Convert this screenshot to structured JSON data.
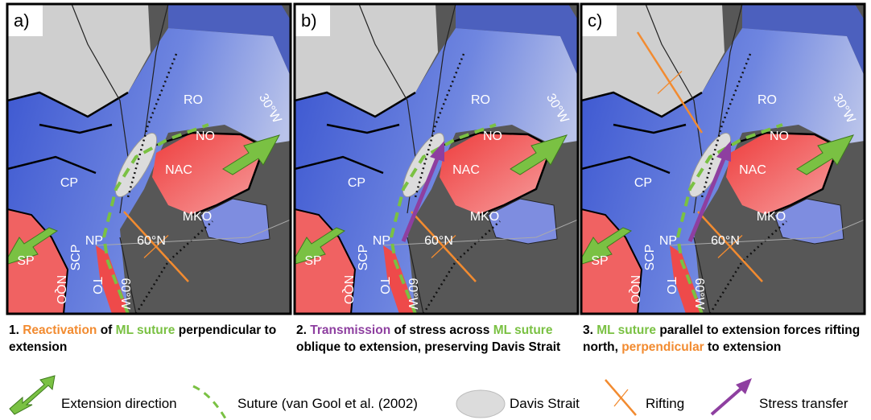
{
  "panels": [
    {
      "label": "a)",
      "regions": [
        "RO",
        "NO",
        "NAC",
        "CP",
        "MKO",
        "SCP",
        "NP",
        "60°N",
        "SP",
        "NQO",
        "TO",
        "60°W",
        "30°W"
      ],
      "caption": [
        {
          "text": "1. ",
          "color": "#000000"
        },
        {
          "text": "Reactivation",
          "color": "#f28b30"
        },
        {
          "text": " of ",
          "color": "#000000"
        },
        {
          "text": "ML suture",
          "color": "#7ac143"
        },
        {
          "text": " perpendicular to extension",
          "color": "#000000"
        }
      ]
    },
    {
      "label": "b)",
      "regions": [
        "RO",
        "NO",
        "NAC",
        "CP",
        "MKO",
        "SCP",
        "NP",
        "60°N",
        "SP",
        "NQO",
        "TO",
        "60°W",
        "30°W"
      ],
      "caption": [
        {
          "text": "2. ",
          "color": "#000000"
        },
        {
          "text": "Transmission",
          "color": "#8e3fa0"
        },
        {
          "text": " of stress across ",
          "color": "#000000"
        },
        {
          "text": "ML suture",
          "color": "#7ac143"
        },
        {
          "text": " oblique to extension, preserving Davis Strait",
          "color": "#000000"
        }
      ]
    },
    {
      "label": "c)",
      "regions": [
        "RO",
        "NO",
        "NAC",
        "CP",
        "MKO",
        "SCP",
        "NP",
        "60°N",
        "SP",
        "NQO",
        "TO",
        "60°W",
        "30°W"
      ],
      "caption": [
        {
          "text": "3. ",
          "color": "#000000"
        },
        {
          "text": "ML suture",
          "color": "#7ac143"
        },
        {
          "text": " parallel to extension forces rifting north, ",
          "color": "#000000"
        },
        {
          "text": "perpendicular",
          "color": "#f28b30"
        },
        {
          "text": " to extension",
          "color": "#000000"
        }
      ]
    }
  ],
  "legend": [
    "Extension direction",
    "Suture (van Gool et al. (2002)",
    "Davis Strait",
    "Rifting",
    "Stress transfer"
  ]
}
